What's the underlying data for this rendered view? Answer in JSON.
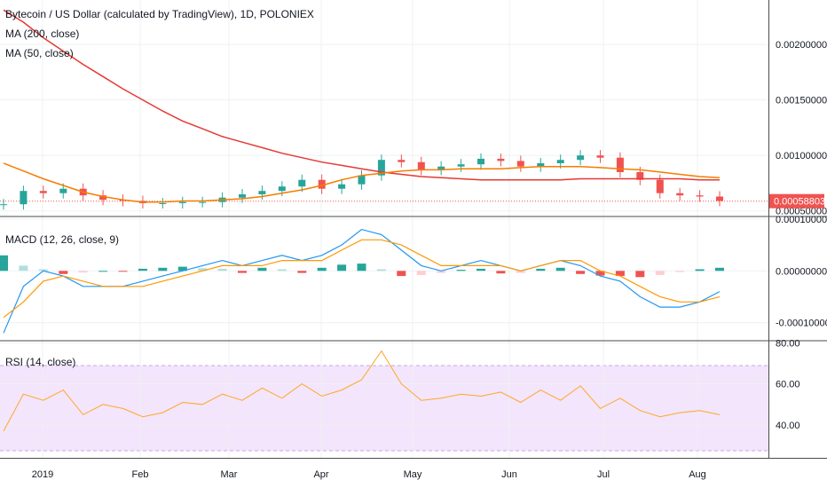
{
  "chart_data": {
    "type": "line",
    "panes": {
      "price": {
        "title": "Bytecoin / US Dollar (calculated by TradingView), 1D, POLONIEX",
        "indicators": [
          "MA (200, close)",
          "MA (50, close)"
        ],
        "ticks": [
          "0.00200000",
          "0.00150000",
          "0.00100000",
          "0.00050000"
        ],
        "tick_values": [
          0.002,
          0.0015,
          0.001,
          0.0005
        ],
        "ylim": [
          0.00045,
          0.0024
        ],
        "last_price_label": "0.00058803",
        "last_price": 0.00058803,
        "series": [
          {
            "name": "MA (200, close)",
            "values": [
              0.00231,
              0.0022,
              0.00206,
              0.00194,
              0.00182,
              0.00171,
              0.0016,
              0.0015,
              0.0014,
              0.00131,
              0.00124,
              0.00117,
              0.00112,
              0.00107,
              0.00102,
              0.00098,
              0.00094,
              0.00091,
              0.00088,
              0.00085,
              0.00083,
              0.00081,
              0.0008,
              0.00079,
              0.00078,
              0.00078,
              0.00078,
              0.00078,
              0.00078,
              0.00079,
              0.00079,
              0.00079,
              0.00079,
              0.00079,
              0.00079,
              0.00078,
              0.00078
            ]
          },
          {
            "name": "MA (50, close)",
            "values": [
              0.00093,
              0.00086,
              0.00079,
              0.00073,
              0.00067,
              0.00063,
              0.0006,
              0.00058,
              0.00058,
              0.00059,
              0.00059,
              0.0006,
              0.00061,
              0.00063,
              0.00066,
              0.00069,
              0.00073,
              0.00078,
              0.00082,
              0.00084,
              0.00086,
              0.00087,
              0.00087,
              0.00088,
              0.00088,
              0.00088,
              0.00089,
              0.0009,
              0.0009,
              0.0009,
              0.00089,
              0.00088,
              0.00087,
              0.00085,
              0.00083,
              0.00081,
              0.0008
            ]
          },
          {
            "name": "Close",
            "values": [
              0.00056,
              0.00068,
              0.00066,
              0.0007,
              0.00064,
              0.0006,
              0.00059,
              0.00057,
              0.00057,
              0.00058,
              0.00058,
              0.00062,
              0.00065,
              0.00068,
              0.00072,
              0.00078,
              0.0007,
              0.00074,
              0.00082,
              0.00096,
              0.00094,
              0.00087,
              0.0009,
              0.00092,
              0.00097,
              0.00095,
              0.0009,
              0.00093,
              0.00096,
              0.001,
              0.00098,
              0.00085,
              0.00078,
              0.00066,
              0.00064,
              0.00063,
              0.00059
            ]
          }
        ]
      },
      "macd": {
        "title": "MACD (12, 26, close, 9)",
        "ticks": [
          "0.00010000",
          "0.00000000",
          "-0.00010000"
        ],
        "tick_values": [
          0.0001,
          0,
          -0.0001
        ],
        "ylim": [
          -0.000135,
          0.000105
        ],
        "series": [
          {
            "name": "MACD",
            "values": [
              -0.00012,
              -3e-05,
              0.0,
              -1e-05,
              -3e-05,
              -3e-05,
              -3e-05,
              -2e-05,
              -1e-05,
              0.0,
              1e-05,
              2e-05,
              1e-05,
              2e-05,
              3e-05,
              2e-05,
              3e-05,
              5e-05,
              8e-05,
              7e-05,
              4e-05,
              1e-05,
              0.0,
              1e-05,
              2e-05,
              1e-05,
              0.0,
              1e-05,
              2e-05,
              1e-05,
              -1e-05,
              -2e-05,
              -5e-05,
              -7e-05,
              -7e-05,
              -6e-05,
              -4e-05
            ]
          },
          {
            "name": "Signal",
            "values": [
              -9e-05,
              -6e-05,
              -2e-05,
              -1e-05,
              -2e-05,
              -3e-05,
              -3e-05,
              -3e-05,
              -2e-05,
              -1e-05,
              0.0,
              1e-05,
              1e-05,
              1e-05,
              2e-05,
              2e-05,
              2e-05,
              4e-05,
              6e-05,
              6e-05,
              5e-05,
              3e-05,
              1e-05,
              1e-05,
              1e-05,
              1e-05,
              0.0,
              1e-05,
              2e-05,
              2e-05,
              0.0,
              -1e-05,
              -3e-05,
              -5e-05,
              -6e-05,
              -6e-05,
              -5e-05
            ]
          },
          {
            "name": "Histogram",
            "values": [
              3e-05,
              1e-05,
              3e-06,
              -6e-06,
              -3e-06,
              0.0,
              -1e-06,
              4e-06,
              6e-06,
              8e-06,
              5e-06,
              4e-06,
              -4e-06,
              6e-06,
              3e-06,
              -4e-06,
              6e-06,
              1.2e-05,
              1.4e-05,
              3e-06,
              -1e-05,
              -8e-06,
              -4e-06,
              2e-06,
              4e-06,
              -5e-06,
              -4e-06,
              4e-06,
              6e-06,
              -6e-06,
              -9e-06,
              -1e-05,
              -1.2e-05,
              -8e-06,
              -2e-06,
              3e-06,
              6e-06
            ]
          }
        ]
      },
      "rsi": {
        "title": "RSI (14, close)",
        "ticks": [
          "80.00",
          "60.00",
          "40.00"
        ],
        "tick_values": [
          80,
          60,
          40
        ],
        "ylim": [
          24,
          81
        ],
        "band": [
          30,
          70
        ],
        "series": [
          {
            "name": "RSI",
            "values": [
              37,
              55,
              52,
              57,
              45,
              50,
              48,
              44,
              46,
              51,
              50,
              55,
              52,
              58,
              53,
              60,
              54,
              57,
              62,
              76,
              60,
              52,
              53,
              55,
              54,
              56,
              51,
              57,
              52,
              59,
              48,
              53,
              47,
              44,
              46,
              47,
              45
            ]
          }
        ]
      }
    },
    "x_labels": [
      "2019",
      "Feb",
      "Mar",
      "Apr",
      "May",
      "Jun",
      "Jul",
      "Aug"
    ]
  }
}
